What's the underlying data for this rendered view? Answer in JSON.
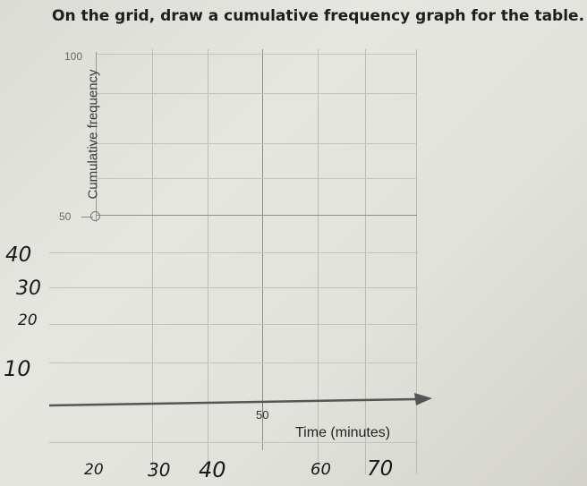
{
  "question": "On the grid, draw a cumulative frequency graph for the table.",
  "axes": {
    "y_label": "Cumulative frequency",
    "y_tick_top": "100",
    "y_tick_mid": "50",
    "x_tick_mid": "50",
    "x_label": "Time (minutes)"
  },
  "handwritten": {
    "y_labels": [
      "40",
      "30",
      "20",
      "10"
    ],
    "x_labels": [
      "20",
      "30",
      "40",
      "60",
      "70"
    ]
  }
}
